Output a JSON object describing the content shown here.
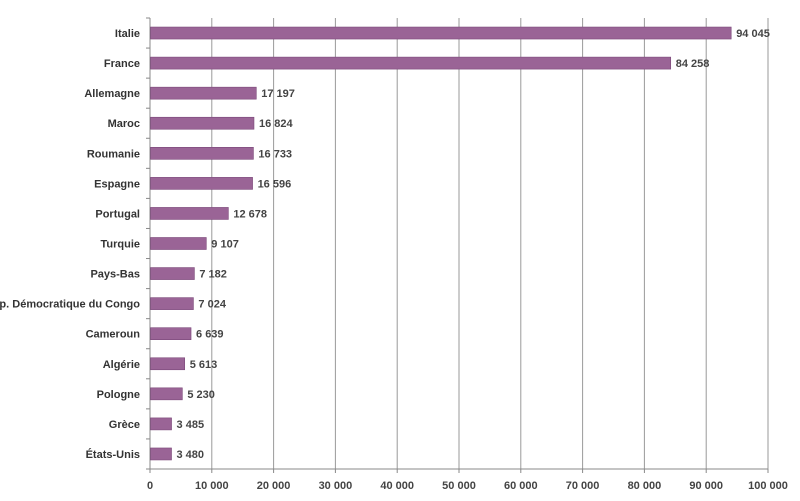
{
  "chart_data": {
    "type": "bar",
    "orientation": "horizontal",
    "categories": [
      "Italie",
      "France",
      "Allemagne",
      "Maroc",
      "Roumanie",
      "Espagne",
      "Portugal",
      "Turquie",
      "Pays-Bas",
      "Rép. Démocratique du Congo",
      "Cameroun",
      "Algérie",
      "Pologne",
      "Grèce",
      "États-Unis"
    ],
    "values": [
      94045,
      84258,
      17197,
      16824,
      16733,
      16596,
      12678,
      9107,
      7182,
      7024,
      6639,
      5613,
      5230,
      3485,
      3480
    ],
    "value_labels": [
      "94 045",
      "84 258",
      "17 197",
      "16 824",
      "16 733",
      "16 596",
      "12 678",
      "9 107",
      "7 182",
      "7 024",
      "6 639",
      "5 613",
      "5 230",
      "3 485",
      "3 480"
    ],
    "xlim": [
      0,
      100000
    ],
    "x_ticks": [
      0,
      10000,
      20000,
      30000,
      40000,
      50000,
      60000,
      70000,
      80000,
      90000,
      100000
    ],
    "x_tick_labels": [
      "0",
      "10 000",
      "20 000",
      "30 000",
      "40 000",
      "50 000",
      "60 000",
      "70 000",
      "80 000",
      "90 000",
      "100 000"
    ],
    "grid": true,
    "legend": "none",
    "bar_color": "#9A6496",
    "bar_edge_color": "#7A4778"
  }
}
